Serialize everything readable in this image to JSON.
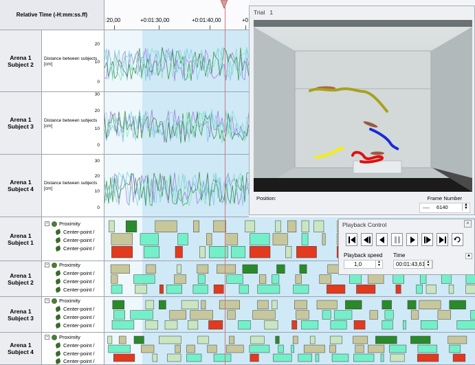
{
  "timeline": {
    "header_label": "Relative Time (-H:mm:ss.ff)",
    "ticks": [
      ":20,00",
      "+0:01:30,00",
      "+0:01:40,00",
      "+0"
    ]
  },
  "plots": [
    {
      "arena": "Arena 1",
      "subject": "Subject 2",
      "label": "Distance between subjects",
      "unit": "[cm]",
      "y_ticks": [
        "20",
        "10",
        "0"
      ]
    },
    {
      "arena": "Arena 1",
      "subject": "Subject 3",
      "label": "Distance between subjects",
      "unit": "[cm]",
      "y_ticks": [
        "30",
        "20",
        "10",
        "0"
      ]
    },
    {
      "arena": "Arena 1",
      "subject": "Subject 4",
      "label": "Distance between subjects",
      "unit": "[cm]",
      "y_ticks": [
        "30",
        "20",
        "10",
        "0"
      ]
    }
  ],
  "event_groups": [
    {
      "arena": "Arena 1",
      "subject": "Subject 1",
      "group": "Proximity",
      "items": [
        "Center-point /",
        "Center-point /",
        "Center-point /"
      ]
    },
    {
      "arena": "Arena 1",
      "subject": "Subject 2",
      "group": "Proximity",
      "items": [
        "Center-point /",
        "Center-point /",
        "Center-point /"
      ]
    },
    {
      "arena": "Arena 1",
      "subject": "Subject 3",
      "group": "Proximity",
      "items": [
        "Center-point /",
        "Center-point /",
        "Center-point /"
      ]
    },
    {
      "arena": "Arena 1",
      "subject": "Subject 4",
      "group": "Proximity",
      "items": [
        "Center-point /",
        "Center-point /",
        "Center-point /"
      ]
    }
  ],
  "video": {
    "title": "Trial",
    "trial_number": "1",
    "position_label": "Position:",
    "frame_number_label": "Frame Number",
    "frame_number_value": "6140"
  },
  "playback": {
    "title": "Playback Control",
    "speed_label": "Playback speed",
    "speed_value": "1,0",
    "time_label": "Time",
    "time_value": "00:01:43,610",
    "buttons": [
      "first-frame-icon",
      "previous-event-icon",
      "step-back-icon",
      "pause-icon",
      "play-icon",
      "next-frame-icon",
      "last-frame-icon",
      "loop-icon"
    ]
  },
  "colors": {
    "highlight": "#cfe9f7",
    "cursor": "#c97a7a",
    "event_light_green": "#c9e6c1",
    "event_dark_green": "#2a8a2a",
    "event_aqua": "#74f0c8",
    "event_khaki": "#c8c79c",
    "event_red": "#e23a1e",
    "trail_olive": "#a8a21c",
    "trail_blue": "#1a2bd8",
    "trail_yellow": "#f5ee0a",
    "trail_red": "#e01010"
  }
}
